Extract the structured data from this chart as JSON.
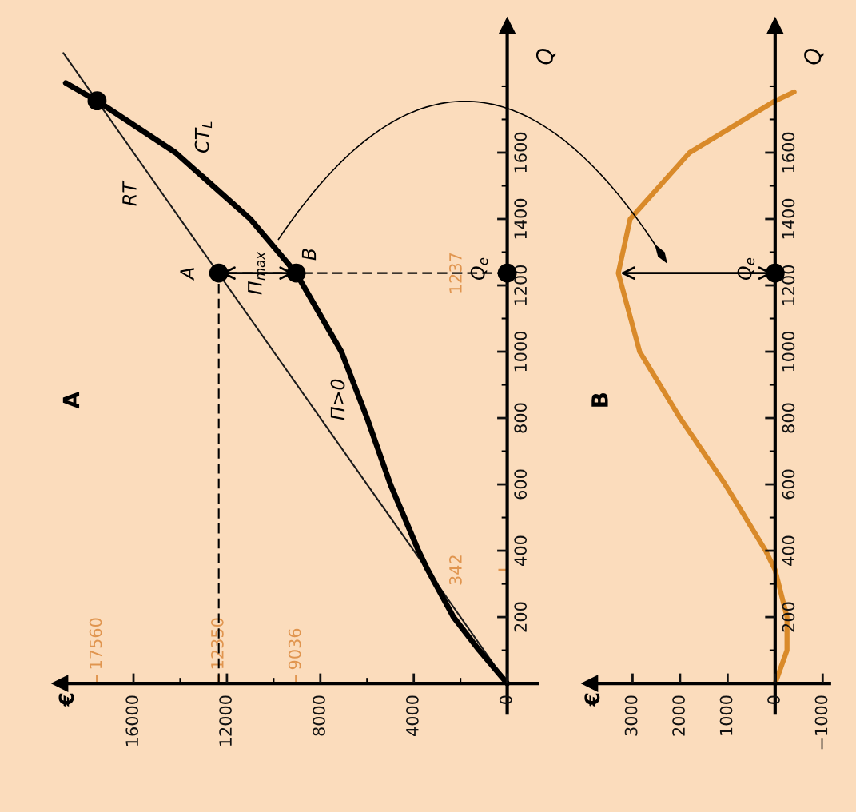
{
  "chart_data": [
    {
      "type": "line",
      "orientation": "horizontal",
      "title": "A",
      "ylabel": "Q",
      "xlim": [
        19150,
        -1300
      ],
      "ylim": [
        -89,
        1983
      ],
      "xticks": [
        {
          "value": 0,
          "label": "0"
        },
        {
          "value": 2000,
          "label": null
        },
        {
          "value": 4000,
          "label": "4000"
        },
        {
          "value": 6000,
          "label": null
        },
        {
          "value": 8000,
          "label": "8000"
        },
        {
          "value": 10000,
          "label": null
        },
        {
          "value": 12000,
          "label": "12000"
        },
        {
          "value": 14000,
          "label": null
        },
        {
          "value": 16000,
          "label": "16000"
        }
      ],
      "yticks": [
        {
          "value": 100,
          "label": null
        },
        {
          "value": 200,
          "label": "200"
        },
        {
          "value": 300,
          "label": null
        },
        {
          "value": 400,
          "label": "400"
        },
        {
          "value": 500,
          "label": null
        },
        {
          "value": 600,
          "label": "600"
        },
        {
          "value": 700,
          "label": null
        },
        {
          "value": 800,
          "label": "800"
        },
        {
          "value": 900,
          "label": null
        },
        {
          "value": 1000,
          "label": "1000"
        },
        {
          "value": 1100,
          "label": null
        },
        {
          "value": 1200,
          "label": "1200"
        },
        {
          "value": 1300,
          "label": null
        },
        {
          "value": 1400,
          "label": "1400"
        },
        {
          "value": 1500,
          "label": null
        },
        {
          "value": 1600,
          "label": "1600"
        },
        {
          "value": 1700,
          "label": null
        },
        {
          "value": 1800,
          "label": null
        }
      ],
      "x2lim": [
        19150,
        -1300
      ],
      "x2ticks": [
        17560,
        12350,
        9036
      ],
      "y2lim": [
        -89,
        1983
      ],
      "y2ticks": [
        342,
        1237
      ],
      "series": [
        {
          "color": "#1a1a1a",
          "x": [
            0,
            1900
          ],
          "values": [
            0,
            19000
          ]
        },
        {
          "color": "#000000",
          "x": [
            0,
            100,
            200,
            342,
            400,
            600,
            800,
            1000,
            1237,
            1400,
            1600,
            1756,
            1810
          ],
          "values": [
            0,
            1200,
            2300,
            3400,
            3800,
            5000,
            6000,
            7100,
            9036,
            11000,
            14200,
            17560,
            18900
          ]
        },
        {
          "type": "scatter",
          "color": "#000000",
          "marker": "circle",
          "x": [
            1756,
            1237,
            1237,
            1237
          ],
          "values": [
            17560,
            12350,
            9036,
            0
          ]
        }
      ],
      "ref_lines": [
        {
          "axis": "x",
          "value": 12350,
          "line_style": "dashed"
        },
        {
          "axis": "y",
          "value": 1237,
          "line_style": "dashed"
        }
      ],
      "annotations": [
        "RT",
        "CT$_{L}$",
        {
          "text": "Π$_{max}$",
          "x": 10735,
          "y": 1237
        },
        "Π>0",
        {
          "text": "A",
          "x": 12350,
          "y": 1237
        },
        {
          "text": "B",
          "x": 9036,
          "y": 1237
        },
        {
          "text": "Q$_{e}$",
          "x": 0,
          "y": 1237
        },
        "€"
      ]
    },
    {
      "type": "line",
      "orientation": "horizontal",
      "title": "B",
      "ylabel": "Q",
      "xlim": [
        3900,
        -1143
      ],
      "ylim": [
        -89,
        1983
      ],
      "xticks": [
        {
          "value": -1000,
          "label": "−1000"
        },
        {
          "value": 0,
          "label": "0"
        },
        {
          "value": 1000,
          "label": "1000"
        },
        {
          "value": 2000,
          "label": "2000"
        },
        {
          "value": 3000,
          "label": "3000"
        }
      ],
      "yticks": [
        {
          "value": 100,
          "label": null
        },
        {
          "value": 200,
          "label": "200"
        },
        {
          "value": 300,
          "label": null
        },
        {
          "value": 400,
          "label": "400"
        },
        {
          "value": 500,
          "label": null
        },
        {
          "value": 600,
          "label": "600"
        },
        {
          "value": 700,
          "label": null
        },
        {
          "value": 800,
          "label": "800"
        },
        {
          "value": 900,
          "label": null
        },
        {
          "value": 1000,
          "label": "1000"
        },
        {
          "value": 1100,
          "label": null
        },
        {
          "value": 1200,
          "label": "1200"
        },
        {
          "value": 1300,
          "label": null
        },
        {
          "value": 1400,
          "label": "1400"
        },
        {
          "value": 1500,
          "label": null
        },
        {
          "value": 1600,
          "label": "1600"
        },
        {
          "value": 1700,
          "label": null
        },
        {
          "value": 1800,
          "label": null
        }
      ],
      "series": [
        {
          "color": "#d98a2a",
          "x": [
            0,
            100,
            160,
            200,
            342,
            400,
            600,
            800,
            1000,
            1237,
            1400,
            1600,
            1756,
            1783
          ],
          "values": [
            0,
            -250,
            -250,
            -250,
            0,
            200,
            1050,
            2000,
            2850,
            3300,
            3050,
            1800,
            0,
            -400
          ]
        },
        {
          "type": "scatter",
          "color": "#000000",
          "marker": "circle",
          "x": [
            1237
          ],
          "values": [
            0
          ]
        }
      ],
      "annotations": [
        {
          "text": "Q$_{e}$",
          "x": 0,
          "y": 1237
        },
        "€"
      ]
    }
  ]
}
